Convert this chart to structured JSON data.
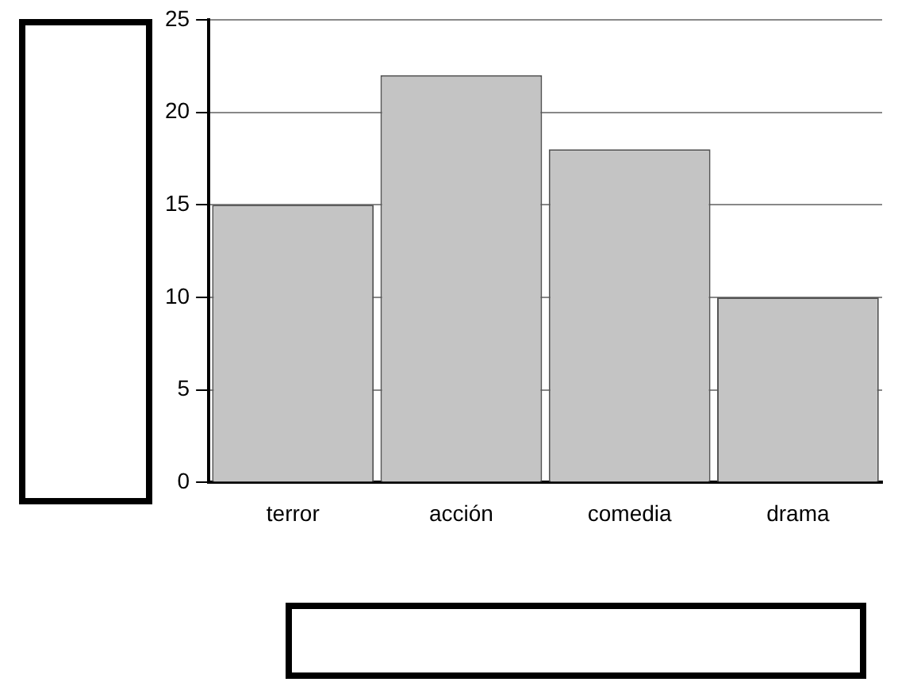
{
  "chart_data": {
    "type": "bar",
    "categories": [
      "terror",
      "acción",
      "comedia",
      "drama"
    ],
    "values": [
      15,
      22,
      18,
      10
    ],
    "color": "#c4c4c4",
    "ylim": [
      0,
      25
    ],
    "yticks": [
      0,
      5,
      10,
      15,
      20,
      25
    ],
    "grid": "y"
  }
}
